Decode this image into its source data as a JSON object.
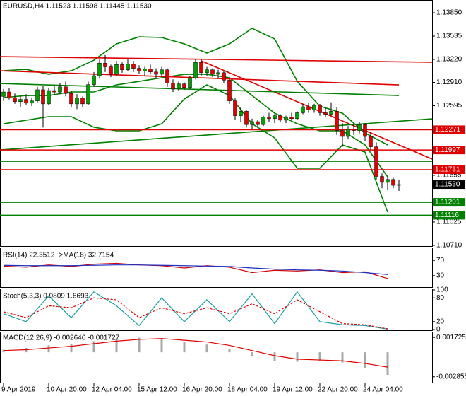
{
  "chart_data": [
    {
      "type": "candlestick",
      "title": "EURUSD,H4  1.11523 1.11598 1.11445 1.11530",
      "xlim": [
        -0.625,
        75.875
      ],
      "ylim": [
        1.107,
        1.14022
      ],
      "yticks": [
        {
          "value": 1.1385,
          "label": "1.13850"
        },
        1.13535,
        {
          "value": 1.1322,
          "label": "1.13220"
        },
        {
          "value": 1.1291,
          "label": "1.12910"
        },
        1.12595,
        1.11655,
        1.11025,
        {
          "value": 1.1071,
          "label": "1.10710"
        }
      ],
      "up_color": "#00a000",
      "down_color": "#e00000",
      "open": [
        1.1272,
        1.1278,
        1.127,
        1.1265,
        1.1268,
        1.1263,
        1.1266,
        1.1281,
        1.1262,
        1.128,
        1.1278,
        1.1285,
        1.1276,
        1.1262,
        1.127,
        1.1262,
        1.1288,
        1.13,
        1.1317,
        1.1312,
        1.1302,
        1.1315,
        1.1308,
        1.1316,
        1.131,
        1.1306,
        1.1309,
        1.1305,
        1.1302,
        1.1308,
        1.129,
        1.1282,
        1.1289,
        1.1284,
        1.1297,
        1.1318,
        1.1304,
        1.1308,
        1.1302,
        1.1304,
        1.1294,
        1.1266,
        1.1246,
        1.1252,
        1.1234,
        1.1238,
        1.1234,
        1.1244,
        1.1242,
        1.1246,
        1.124,
        1.1244,
        1.1242,
        1.125,
        1.1258,
        1.1254,
        1.126,
        1.125,
        1.1248,
        1.1252,
        1.1226,
        1.1218,
        1.1228,
        1.1226,
        1.1234,
        1.1218,
        1.1204,
        1.1164,
        1.1156,
        1.116,
        1.11523
      ],
      "high": [
        1.1282,
        1.1283,
        1.1276,
        1.1272,
        1.1275,
        1.127,
        1.1285,
        1.1286,
        1.1284,
        1.1287,
        1.129,
        1.1292,
        1.128,
        1.1275,
        1.1272,
        1.1292,
        1.1305,
        1.1322,
        1.1328,
        1.1315,
        1.132,
        1.1318,
        1.1322,
        1.132,
        1.1314,
        1.1312,
        1.1315,
        1.131,
        1.1312,
        1.131,
        1.1295,
        1.1292,
        1.1291,
        1.13,
        1.1322,
        1.1322,
        1.1312,
        1.131,
        1.1308,
        1.1306,
        1.1298,
        1.127,
        1.1258,
        1.1254,
        1.1242,
        1.124,
        1.1246,
        1.125,
        1.1248,
        1.1248,
        1.1246,
        1.125,
        1.1252,
        1.1262,
        1.1264,
        1.1262,
        1.1262,
        1.1256,
        1.1264,
        1.1258,
        1.1236,
        1.1232,
        1.1236,
        1.1238,
        1.1236,
        1.1224,
        1.121,
        1.1168,
        1.1164,
        1.1162,
        1.11598
      ],
      "low": [
        1.1266,
        1.1268,
        1.1262,
        1.1258,
        1.1261,
        1.1259,
        1.1264,
        1.123,
        1.126,
        1.1274,
        1.1275,
        1.1272,
        1.1258,
        1.1255,
        1.1258,
        1.126,
        1.1285,
        1.1296,
        1.1305,
        1.1298,
        1.13,
        1.1304,
        1.1306,
        1.1305,
        1.1302,
        1.13,
        1.1302,
        1.1296,
        1.1298,
        1.1285,
        1.1278,
        1.128,
        1.1281,
        1.1282,
        1.1295,
        1.13,
        1.13,
        1.1298,
        1.1296,
        1.129,
        1.1262,
        1.124,
        1.1238,
        1.123,
        1.1228,
        1.123,
        1.1232,
        1.1238,
        1.1236,
        1.1238,
        1.1236,
        1.124,
        1.124,
        1.1248,
        1.125,
        1.125,
        1.1246,
        1.1244,
        1.1246,
        1.122,
        1.1204,
        1.1214,
        1.122,
        1.1222,
        1.1212,
        1.12,
        1.116,
        1.1148,
        1.1146,
        1.1148,
        1.11445
      ],
      "close": [
        1.1278,
        1.127,
        1.1265,
        1.1268,
        1.1263,
        1.1266,
        1.1281,
        1.1262,
        1.128,
        1.1278,
        1.1285,
        1.1276,
        1.1262,
        1.127,
        1.1262,
        1.1288,
        1.13,
        1.1317,
        1.1312,
        1.1302,
        1.1315,
        1.1308,
        1.1316,
        1.131,
        1.1306,
        1.1309,
        1.1305,
        1.1302,
        1.1308,
        1.129,
        1.1282,
        1.1289,
        1.1284,
        1.1297,
        1.1318,
        1.1304,
        1.1308,
        1.1302,
        1.1304,
        1.1294,
        1.1266,
        1.1246,
        1.1252,
        1.1234,
        1.1238,
        1.1234,
        1.1244,
        1.1242,
        1.1246,
        1.124,
        1.1244,
        1.1242,
        1.125,
        1.1258,
        1.1254,
        1.126,
        1.125,
        1.1248,
        1.1252,
        1.1226,
        1.1218,
        1.1228,
        1.1226,
        1.1234,
        1.1218,
        1.1204,
        1.1164,
        1.1156,
        1.116,
        1.1152,
        1.1153
      ],
      "bands": {
        "color": "#008000",
        "x": [
          0,
          4,
          8,
          12,
          16,
          20,
          24,
          28,
          32,
          36,
          40,
          44,
          48,
          52,
          56,
          60,
          64,
          68
        ],
        "upper": [
          1.13067,
          1.13086,
          1.13019,
          1.13067,
          1.1321,
          1.1343,
          1.13525,
          1.13516,
          1.1343,
          1.13306,
          1.1343,
          1.1364,
          1.13497,
          1.12924,
          1.1259,
          1.12494,
          1.12227,
          1.12065
        ],
        "middle": [
          1.12704,
          1.12733,
          1.12733,
          1.12781,
          1.12781,
          1.12876,
          1.12924,
          1.12972,
          1.13019,
          1.13019,
          1.12972,
          1.12733,
          1.12494,
          1.12351,
          1.12256,
          1.12256,
          1.12065,
          1.11635
        ],
        "lower": [
          1.12351,
          1.12399,
          1.12447,
          1.12447,
          1.12304,
          1.12256,
          1.12256,
          1.12351,
          1.12685,
          1.12876,
          1.12733,
          1.12351,
          1.1216,
          1.1175,
          1.1175,
          1.12065,
          1.11969,
          1.11158
        ]
      },
      "trendlines": [
        {
          "x": [
            -0.625,
            75.875
          ],
          "y": [
            1.13258,
            1.13182
          ],
          "color": "#e00000"
        },
        {
          "x": [
            -0.625,
            70
          ],
          "y": [
            1.13067,
            1.12876
          ],
          "color": "#e00000"
        },
        {
          "x": [
            35,
            75.875
          ],
          "y": [
            1.13201,
            1.11874
          ],
          "color": "#e00000"
        },
        {
          "x": [
            -0.625,
            70
          ],
          "y": [
            1.12895,
            1.12733
          ],
          "color": "#008000"
        },
        {
          "x": [
            -0.625,
            75.875
          ],
          "y": [
            1.11998,
            1.12418
          ],
          "color": "#008000"
        },
        {
          "x": [
            -0.625,
            75.875
          ],
          "y": [
            1.11845,
            1.11845
          ],
          "color": "#008000"
        }
      ],
      "levels": [
        {
          "value": 1.12271,
          "color": "#e00000"
        },
        {
          "value": 1.11997,
          "color": "#e00000"
        },
        {
          "value": 1.11731,
          "color": "#e00000"
        },
        {
          "value": 1.11291,
          "color": "#008000"
        },
        {
          "value": 1.11116,
          "color": "#008000"
        }
      ],
      "last_price": {
        "value": 1.1153,
        "label": "1.11530"
      }
    },
    {
      "type": "line",
      "title": "RSI(14) 22.3512  ->MA(18) 32.7154",
      "xlim": [
        -0.625,
        75.875
      ],
      "ylim": [
        0,
        100
      ],
      "yticks": [
        70,
        30
      ],
      "x": [
        0,
        4,
        8,
        12,
        16,
        20,
        24,
        28,
        32,
        36,
        40,
        44,
        48,
        52,
        56,
        60,
        64,
        68
      ],
      "series": [
        {
          "color": "#d00000",
          "values": [
            55,
            52,
            58,
            54,
            60,
            62,
            58,
            56,
            50,
            56,
            52,
            38,
            44,
            42,
            45,
            38,
            40,
            22.3512
          ]
        },
        {
          "color": "#2030c0",
          "values": [
            57,
            56,
            56,
            56,
            57,
            58,
            58,
            57,
            56,
            55,
            54,
            50,
            47,
            45,
            44,
            42,
            38,
            32.7154
          ]
        }
      ]
    },
    {
      "type": "line",
      "title": "Stoch(5,3,3) 0.9809 1.8693",
      "xlim": [
        -0.625,
        75.875
      ],
      "ylim": [
        0,
        100
      ],
      "yticks": [
        100,
        80,
        20,
        0
      ],
      "x": [
        0,
        4,
        8,
        12,
        16,
        20,
        24,
        28,
        32,
        36,
        40,
        44,
        48,
        52,
        56,
        60,
        64,
        68
      ],
      "series": [
        {
          "color": "#20a0a0",
          "values": [
            40,
            20,
            85,
            30,
            95,
            60,
            10,
            80,
            20,
            75,
            20,
            90,
            15,
            95,
            20,
            12,
            10,
            0.9809
          ]
        },
        {
          "color": "#e00000",
          "dash": true,
          "values": [
            45,
            30,
            60,
            55,
            80,
            75,
            30,
            55,
            40,
            55,
            40,
            65,
            40,
            75,
            45,
            15,
            12,
            1.8693
          ]
        }
      ]
    },
    {
      "type": "macd",
      "title": "MACD(12,26,9) -0.002646 -0.001727",
      "xlim": [
        -0.625,
        75.875
      ],
      "ylim": [
        -0.00353,
        0.0024
      ],
      "yticks": [
        0.001725,
        -0.002855
      ],
      "x": [
        0,
        4,
        8,
        12,
        16,
        20,
        24,
        28,
        32,
        36,
        40,
        44,
        48,
        52,
        56,
        60,
        64,
        68
      ],
      "histogram": [
        0.0003,
        0.0005,
        0.0008,
        0.001,
        0.0013,
        0.0016,
        0.0017,
        0.0015,
        0.0012,
        0.0009,
        0.0004,
        -0.0004,
        -0.001,
        -0.0011,
        -0.001,
        -0.0012,
        -0.0018,
        -0.002646
      ],
      "signal": [
        0.0002,
        0.0003,
        0.0005,
        0.0007,
        0.001,
        0.0013,
        0.0015,
        0.0016,
        0.0014,
        0.0012,
        0.0008,
        0.0002,
        -0.0004,
        -0.0008,
        -0.0009,
        -0.001,
        -0.0013,
        -0.001727
      ],
      "hist_color": "#a8a8a8",
      "signal_color": "#e00000",
      "xticks": [
        {
          "value": 0,
          "label": "9 Apr 2019"
        },
        {
          "value": 8,
          "label": "10 Apr 20:00"
        },
        {
          "value": 16,
          "label": "12 Apr 04:00"
        },
        {
          "value": 24,
          "label": "15 Apr 12:00"
        },
        {
          "value": 32,
          "label": "16 Apr 20:00"
        },
        {
          "value": 40,
          "label": "18 Apr 04:00"
        },
        {
          "value": 48,
          "label": "19 Apr 12:00"
        },
        {
          "value": 56,
          "label": "22 Apr 20:00"
        },
        {
          "value": 64,
          "label": "24 Apr 04:00"
        }
      ]
    }
  ]
}
